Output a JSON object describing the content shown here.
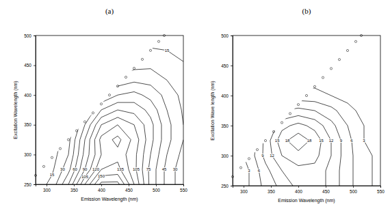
{
  "chart_data": [
    {
      "type": "contour",
      "title": "(a)",
      "x_label": "Emission Wavelength (nm)",
      "y_label": "Excitation Wavelength (nm)",
      "xlim": [
        280,
        550
      ],
      "ylim": [
        250,
        500
      ],
      "xticks": [
        300,
        350,
        400,
        450,
        500,
        550
      ],
      "yticks": [
        250,
        300,
        350,
        400,
        450,
        500
      ],
      "color": "#000000",
      "grid_x": [
        280,
        310,
        340,
        370,
        400,
        430,
        460,
        490,
        520,
        550
      ],
      "grid_y": [
        250,
        275,
        300,
        325,
        350,
        375,
        400,
        425,
        450,
        475,
        500
      ],
      "z": [
        [
          5,
          20,
          60,
          120,
          170,
          170,
          120,
          70,
          40,
          20
        ],
        [
          3,
          12,
          40,
          90,
          135,
          140,
          110,
          70,
          40,
          20
        ],
        [
          2,
          8,
          30,
          80,
          120,
          130,
          110,
          75,
          45,
          25
        ],
        [
          1,
          5,
          25,
          75,
          125,
          140,
          115,
          80,
          50,
          30
        ],
        [
          0,
          3,
          15,
          60,
          105,
          120,
          105,
          80,
          50,
          30
        ],
        [
          0,
          2,
          8,
          40,
          75,
          90,
          85,
          70,
          45,
          28
        ],
        [
          0,
          1,
          4,
          20,
          45,
          60,
          65,
          55,
          40,
          25
        ],
        [
          0,
          0,
          2,
          10,
          25,
          35,
          42,
          40,
          30,
          20
        ],
        [
          0,
          0,
          1,
          5,
          12,
          20,
          25,
          27,
          22,
          16
        ],
        [
          0,
          0,
          0,
          2,
          6,
          10,
          14,
          16,
          15,
          12
        ],
        [
          0,
          0,
          0,
          1,
          3,
          5,
          8,
          10,
          10,
          8
        ]
      ],
      "levels": [
        15,
        30,
        45,
        60,
        75,
        90,
        105,
        120,
        135,
        150,
        165
      ],
      "diagonal": {
        "x": [
          280,
          295,
          310,
          325,
          340,
          355,
          370,
          385,
          400,
          415,
          430,
          445,
          460,
          475,
          490,
          505,
          515
        ],
        "y": [
          265,
          280,
          295,
          310,
          325,
          340,
          355,
          370,
          385,
          400,
          415,
          430,
          445,
          460,
          475,
          490,
          500
        ]
      }
    },
    {
      "type": "contour",
      "title": "(b)",
      "x_label": "Emission Wavelength (nm)",
      "y_label": "Excitation Wave length (nm)",
      "xlim": [
        280,
        550
      ],
      "ylim": [
        250,
        500
      ],
      "xticks": [
        300,
        350,
        400,
        450,
        500,
        550
      ],
      "yticks": [
        250,
        300,
        350,
        400,
        450,
        500
      ],
      "color": "#000000",
      "grid_x": [
        280,
        310,
        340,
        370,
        400,
        430,
        460,
        490,
        520,
        550
      ],
      "grid_y": [
        250,
        275,
        300,
        325,
        350,
        375,
        400,
        425,
        450,
        475,
        500
      ],
      "z": [
        [
          1,
          3,
          7,
          10,
          13,
          14,
          11,
          7,
          4,
          2
        ],
        [
          1,
          3,
          8,
          12,
          14,
          14,
          11,
          7,
          4,
          2
        ],
        [
          1,
          4,
          10,
          15,
          17,
          16,
          12,
          7,
          4,
          2
        ],
        [
          0,
          3,
          10,
          17,
          20,
          17,
          12,
          7,
          3,
          2
        ],
        [
          0,
          2,
          8,
          14,
          16,
          14,
          10,
          6,
          3,
          1
        ],
        [
          0,
          1,
          5,
          9,
          10,
          9,
          7,
          4,
          2,
          1
        ],
        [
          0,
          0,
          2,
          4,
          4,
          4,
          3,
          2,
          1,
          0
        ],
        [
          0,
          0,
          1,
          1,
          2,
          2,
          1,
          1,
          0,
          0
        ],
        [
          0,
          0,
          0,
          0,
          1,
          1,
          1,
          0,
          0,
          0
        ],
        [
          0,
          0,
          0,
          0,
          0,
          0,
          0,
          0,
          0,
          0
        ],
        [
          0,
          0,
          0,
          0,
          0,
          0,
          0,
          0,
          0,
          0
        ]
      ],
      "levels": [
        3,
        6,
        9,
        12,
        15,
        18
      ],
      "diagonal": {
        "x": [
          280,
          295,
          310,
          325,
          340,
          355,
          370,
          385,
          400,
          415,
          430,
          445,
          460,
          475,
          490,
          505,
          515
        ],
        "y": [
          265,
          280,
          295,
          310,
          325,
          340,
          355,
          370,
          385,
          400,
          415,
          430,
          445,
          460,
          475,
          490,
          500
        ]
      }
    }
  ]
}
